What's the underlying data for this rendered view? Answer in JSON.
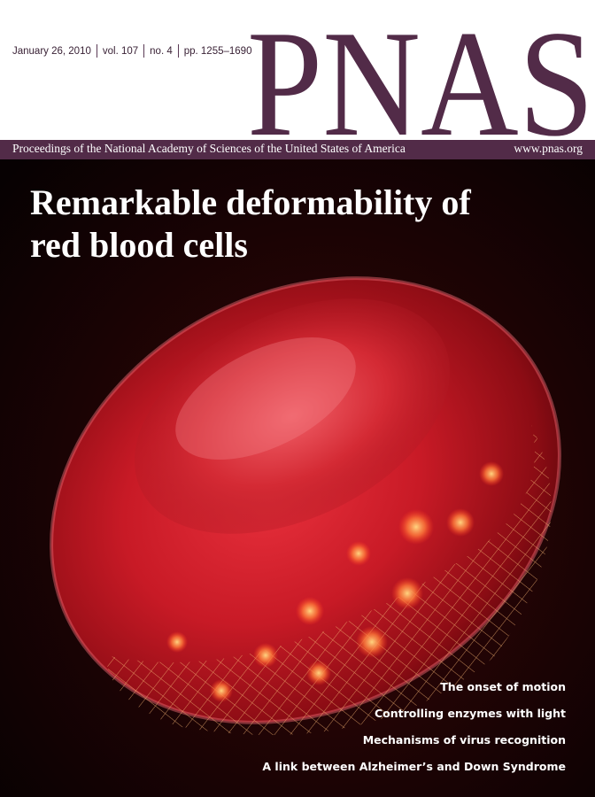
{
  "issue": {
    "date": "January 26, 2010",
    "volume": "vol. 107",
    "number": "no. 4",
    "pages": "pp. 1255–1690"
  },
  "masthead": {
    "logo_text": "PNAS",
    "brand_color": "#522b48"
  },
  "band": {
    "full_name": "Proceedings of the National Academy of Sciences of the United States of America",
    "website": "www.pnas.org"
  },
  "cover": {
    "headline_line1": "Remarkable deformability of",
    "headline_line2": "red blood cells",
    "image": "red-blood-cell-illustration"
  },
  "teasers": [
    "The onset of motion",
    "Controlling enzymes with light",
    "Mechanisms of virus recognition",
    "A link between Alzheimer’s and Down Syndrome"
  ]
}
